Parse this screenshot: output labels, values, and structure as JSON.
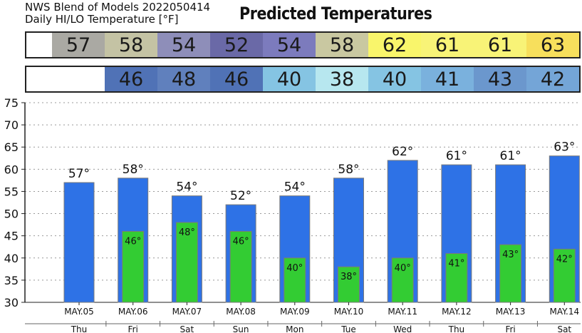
{
  "header": {
    "source": "NWS Blend of Models 2022050414",
    "subtitle": "Daily HI/LO Temperature [°F]",
    "title": "Predicted Temperatures"
  },
  "table": {
    "hi": [
      {
        "value": "57",
        "color": "#aaa9a3"
      },
      {
        "value": "58",
        "color": "#c4c3a4"
      },
      {
        "value": "54",
        "color": "#8e8eb9"
      },
      {
        "value": "52",
        "color": "#6a69a7"
      },
      {
        "value": "54",
        "color": "#7c7bbd"
      },
      {
        "value": "58",
        "color": "#c9c8a1"
      },
      {
        "value": "62",
        "color": "#f9f56b"
      },
      {
        "value": "61",
        "color": "#f8f377"
      },
      {
        "value": "61",
        "color": "#f8f377"
      },
      {
        "value": "63",
        "color": "#f7df5c"
      }
    ],
    "lo": [
      {
        "value": "",
        "color": "#ffffff"
      },
      {
        "value": "46",
        "color": "#5072b6"
      },
      {
        "value": "48",
        "color": "#6080bd"
      },
      {
        "value": "46",
        "color": "#5072b6"
      },
      {
        "value": "40",
        "color": "#85c4e3"
      },
      {
        "value": "38",
        "color": "#b7e7ef"
      },
      {
        "value": "40",
        "color": "#85c4e3"
      },
      {
        "value": "41",
        "color": "#7ab1dd"
      },
      {
        "value": "43",
        "color": "#6b97cd"
      },
      {
        "value": "42",
        "color": "#74a5d7"
      }
    ]
  },
  "chart_data": {
    "type": "bar",
    "title": "Predicted Temperatures",
    "categories": [
      "MAY.05",
      "MAY.06",
      "MAY.07",
      "MAY.08",
      "MAY.09",
      "MAY.10",
      "MAY.11",
      "MAY.12",
      "MAY.13",
      "MAY.14"
    ],
    "days": [
      "Thu",
      "Fri",
      "Sat",
      "Sun",
      "Mon",
      "Tue",
      "Wed",
      "Thu",
      "Fri",
      "Sat"
    ],
    "series": [
      {
        "values": [
          57,
          58,
          54,
          52,
          54,
          58,
          62,
          61,
          61,
          63
        ],
        "color": "#2e72e6"
      },
      {
        "values": [
          null,
          46,
          48,
          46,
          40,
          38,
          40,
          41,
          43,
          42
        ],
        "color": "#33cc33"
      }
    ],
    "hi_labels": [
      "57°",
      "58°",
      "54°",
      "52°",
      "54°",
      "58°",
      "62°",
      "61°",
      "61°",
      "63°"
    ],
    "lo_labels": [
      "",
      "46°",
      "48°",
      "46°",
      "40°",
      "38°",
      "40°",
      "41°",
      "43°",
      "42°"
    ],
    "ylim": [
      30,
      75
    ],
    "yticks": [
      30,
      35,
      40,
      45,
      50,
      55,
      60,
      65,
      70,
      75
    ],
    "grid": true
  }
}
